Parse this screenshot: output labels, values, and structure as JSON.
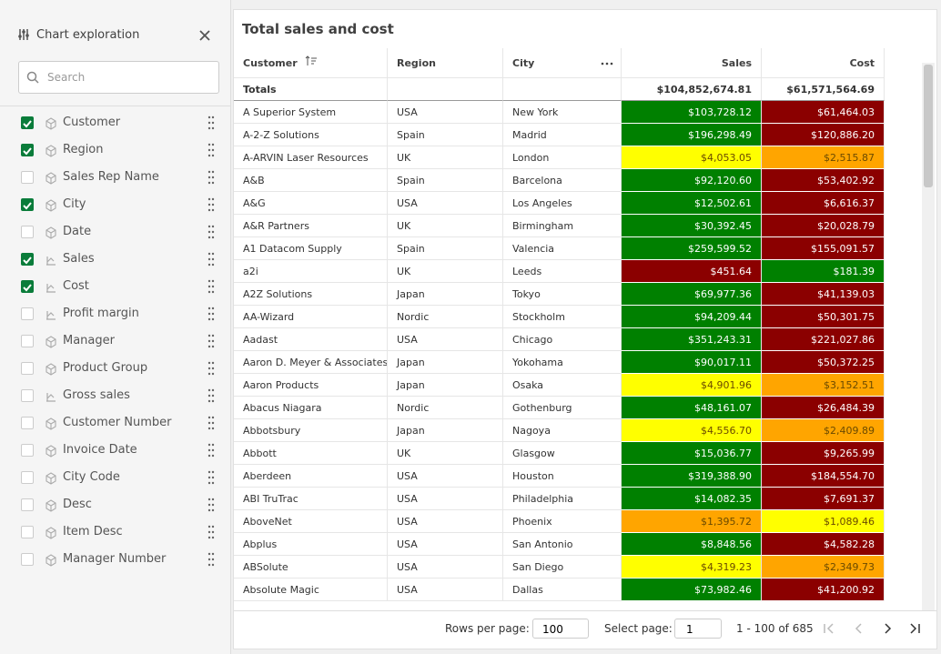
{
  "panel": {
    "title": "Chart exploration",
    "search_placeholder": "Search",
    "fields": [
      {
        "label": "Customer",
        "checked": true,
        "kind": "dimension"
      },
      {
        "label": "Region",
        "checked": true,
        "kind": "dimension"
      },
      {
        "label": "Sales Rep Name",
        "checked": false,
        "kind": "dimension"
      },
      {
        "label": "City",
        "checked": true,
        "kind": "dimension"
      },
      {
        "label": "Date",
        "checked": false,
        "kind": "dimension"
      },
      {
        "label": "Sales",
        "checked": true,
        "kind": "measure"
      },
      {
        "label": "Cost",
        "checked": true,
        "kind": "measure"
      },
      {
        "label": "Profit margin",
        "checked": false,
        "kind": "measure"
      },
      {
        "label": "Manager",
        "checked": false,
        "kind": "dimension"
      },
      {
        "label": "Product Group",
        "checked": false,
        "kind": "dimension"
      },
      {
        "label": "Gross sales",
        "checked": false,
        "kind": "measure"
      },
      {
        "label": "Customer Number",
        "checked": false,
        "kind": "dimension"
      },
      {
        "label": "Invoice Date",
        "checked": false,
        "kind": "dimension"
      },
      {
        "label": "City Code",
        "checked": false,
        "kind": "dimension"
      },
      {
        "label": "Desc",
        "checked": false,
        "kind": "dimension"
      },
      {
        "label": "Item Desc",
        "checked": false,
        "kind": "dimension"
      },
      {
        "label": "Manager Number",
        "checked": false,
        "kind": "dimension"
      }
    ]
  },
  "table": {
    "title": "Total sales and cost",
    "columns": [
      "Customer",
      "Region",
      "City",
      "Sales",
      "Cost"
    ],
    "totals": {
      "label": "Totals",
      "sales": "$104,852,674.81",
      "cost": "$61,571,564.69"
    },
    "rows": [
      {
        "cells": [
          "A Superior System",
          "USA",
          "New York",
          "$103,728.12",
          "$61,464.03"
        ],
        "colors": [
          "#008000",
          "#8b0000"
        ]
      },
      {
        "cells": [
          "A-2-Z Solutions",
          "Spain",
          "Madrid",
          "$196,298.49",
          "$120,886.20"
        ],
        "colors": [
          "#008000",
          "#8b0000"
        ]
      },
      {
        "cells": [
          "A-ARVIN Laser Resources",
          "UK",
          "London",
          "$4,053.05",
          "$2,515.87"
        ],
        "colors": [
          "#ffff00",
          "#ffa500"
        ]
      },
      {
        "cells": [
          "A&B",
          "Spain",
          "Barcelona",
          "$92,120.60",
          "$53,402.92"
        ],
        "colors": [
          "#008000",
          "#8b0000"
        ]
      },
      {
        "cells": [
          "A&G",
          "USA",
          "Los Angeles",
          "$12,502.61",
          "$6,616.37"
        ],
        "colors": [
          "#008000",
          "#8b0000"
        ]
      },
      {
        "cells": [
          "A&R Partners",
          "UK",
          "Birmingham",
          "$30,392.45",
          "$20,028.79"
        ],
        "colors": [
          "#008000",
          "#8b0000"
        ]
      },
      {
        "cells": [
          "A1 Datacom Supply",
          "Spain",
          "Valencia",
          "$259,599.52",
          "$155,091.57"
        ],
        "colors": [
          "#008000",
          "#8b0000"
        ]
      },
      {
        "cells": [
          "a2i",
          "UK",
          "Leeds",
          "$451.64",
          "$181.39"
        ],
        "colors": [
          "#8b0000",
          "#008000"
        ]
      },
      {
        "cells": [
          "A2Z Solutions",
          "Japan",
          "Tokyo",
          "$69,977.36",
          "$41,139.03"
        ],
        "colors": [
          "#008000",
          "#8b0000"
        ]
      },
      {
        "cells": [
          "AA-Wizard",
          "Nordic",
          "Stockholm",
          "$94,209.44",
          "$50,301.75"
        ],
        "colors": [
          "#008000",
          "#8b0000"
        ]
      },
      {
        "cells": [
          "Aadast",
          "USA",
          "Chicago",
          "$351,243.31",
          "$221,027.86"
        ],
        "colors": [
          "#008000",
          "#8b0000"
        ]
      },
      {
        "cells": [
          "Aaron D. Meyer & Associates",
          "Japan",
          "Yokohama",
          "$90,017.11",
          "$50,372.25"
        ],
        "colors": [
          "#008000",
          "#8b0000"
        ]
      },
      {
        "cells": [
          "Aaron Products",
          "Japan",
          "Osaka",
          "$4,901.96",
          "$3,152.51"
        ],
        "colors": [
          "#ffff00",
          "#ffa500"
        ]
      },
      {
        "cells": [
          "Abacus Niagara",
          "Nordic",
          "Gothenburg",
          "$48,161.07",
          "$26,484.39"
        ],
        "colors": [
          "#008000",
          "#8b0000"
        ]
      },
      {
        "cells": [
          "Abbotsbury",
          "Japan",
          "Nagoya",
          "$4,556.70",
          "$2,409.89"
        ],
        "colors": [
          "#ffff00",
          "#ffa500"
        ]
      },
      {
        "cells": [
          "Abbott",
          "UK",
          "Glasgow",
          "$15,036.77",
          "$9,265.99"
        ],
        "colors": [
          "#008000",
          "#8b0000"
        ]
      },
      {
        "cells": [
          "Aberdeen",
          "USA",
          "Houston",
          "$319,388.90",
          "$184,554.70"
        ],
        "colors": [
          "#008000",
          "#8b0000"
        ]
      },
      {
        "cells": [
          "ABI TruTrac",
          "USA",
          "Philadelphia",
          "$14,082.35",
          "$7,691.37"
        ],
        "colors": [
          "#008000",
          "#8b0000"
        ]
      },
      {
        "cells": [
          "AboveNet",
          "USA",
          "Phoenix",
          "$1,395.72",
          "$1,089.46"
        ],
        "colors": [
          "#ffa500",
          "#ffff00"
        ]
      },
      {
        "cells": [
          "Abplus",
          "USA",
          "San Antonio",
          "$8,848.56",
          "$4,582.28"
        ],
        "colors": [
          "#008000",
          "#8b0000"
        ]
      },
      {
        "cells": [
          "ABSolute",
          "USA",
          "San Diego",
          "$4,319.23",
          "$2,349.73"
        ],
        "colors": [
          "#ffff00",
          "#ffa500"
        ]
      },
      {
        "cells": [
          "Absolute Magic",
          "USA",
          "Dallas",
          "$73,982.46",
          "$41,200.92"
        ],
        "colors": [
          "#008000",
          "#8b0000"
        ]
      }
    ]
  },
  "footer": {
    "rows_per_page_label": "Rows per page:",
    "rows_per_page": "100",
    "select_page_label": "Select page:",
    "page": "1",
    "range": "1 - 100 of 685"
  }
}
